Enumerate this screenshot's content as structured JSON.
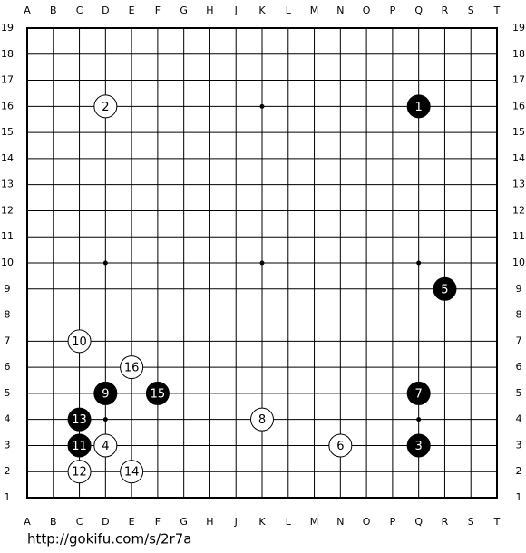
{
  "board": {
    "columns": [
      "A",
      "B",
      "C",
      "D",
      "E",
      "F",
      "G",
      "H",
      "J",
      "K",
      "L",
      "M",
      "N",
      "O",
      "P",
      "Q",
      "R",
      "S",
      "T"
    ],
    "rows": [
      19,
      18,
      17,
      16,
      15,
      14,
      13,
      12,
      11,
      10,
      9,
      8,
      7,
      6,
      5,
      4,
      3,
      2,
      1
    ],
    "stones": [
      {
        "move": 1,
        "color": "black",
        "col": "Q",
        "row": 16
      },
      {
        "move": 2,
        "color": "white",
        "col": "D",
        "row": 16
      },
      {
        "move": 3,
        "color": "black",
        "col": "Q",
        "row": 3
      },
      {
        "move": 4,
        "color": "white",
        "col": "D",
        "row": 3
      },
      {
        "move": 5,
        "color": "black",
        "col": "R",
        "row": 9
      },
      {
        "move": 6,
        "color": "white",
        "col": "N",
        "row": 3
      },
      {
        "move": 7,
        "color": "black",
        "col": "Q",
        "row": 5
      },
      {
        "move": 8,
        "color": "white",
        "col": "K",
        "row": 4
      },
      {
        "move": 9,
        "color": "black",
        "col": "D",
        "row": 5
      },
      {
        "move": 10,
        "color": "white",
        "col": "C",
        "row": 7
      },
      {
        "move": 11,
        "color": "black",
        "col": "C",
        "row": 3
      },
      {
        "move": 12,
        "color": "white",
        "col": "C",
        "row": 2
      },
      {
        "move": 13,
        "color": "black",
        "col": "C",
        "row": 4
      },
      {
        "move": 14,
        "color": "white",
        "col": "E",
        "row": 2
      },
      {
        "move": 15,
        "color": "black",
        "col": "F",
        "row": 5
      },
      {
        "move": 16,
        "color": "white",
        "col": "E",
        "row": 6
      }
    ]
  },
  "footer": {
    "url": "http://gokifu.com/s/2r7a"
  }
}
